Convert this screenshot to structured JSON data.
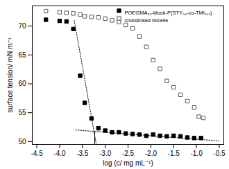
{
  "chart_data": {
    "type": "scatter",
    "x_label": "log (c/ mg mL⁻¹)",
    "y_label": "surface tension/ mN m⁻¹",
    "xlim": [
      -4.6,
      -0.4
    ],
    "ylim": [
      49.5,
      73.5
    ],
    "xticks": [
      -4.5,
      {
        "value": -4,
        "label": "-4.0"
      },
      -3.5,
      {
        "value": -3,
        "label": "-3.0"
      },
      -2.5,
      {
        "value": -2,
        "label": "-2.0"
      },
      -1.5,
      {
        "value": -1,
        "label": "-1.0"
      },
      -0.5
    ],
    "yticks": [
      50,
      55,
      60,
      65,
      70
    ],
    "legend": "top-right",
    "series": [
      {
        "name": "POEGMA₉₃-block-P(STY₅₆-co-TMI₁₆₇)",
        "color": "#000000",
        "marker": "square_filled",
        "x": [
          -4.3,
          -4.0,
          -3.85,
          -3.7,
          -3.55,
          -3.45,
          -3.3,
          -3.15,
          -3.0,
          -2.85,
          -2.7,
          -2.55,
          -2.4,
          -2.25,
          -2.1,
          -1.95,
          -1.8,
          -1.65,
          -1.5,
          -1.35,
          -1.2,
          -1.05,
          -0.9
        ],
        "values": [
          71.1,
          70.9,
          70.8,
          69.5,
          61.4,
          56.7,
          54.0,
          52.3,
          51.9,
          51.6,
          51.6,
          51.4,
          51.3,
          51.2,
          51.0,
          51.2,
          51.0,
          50.9,
          51.0,
          50.9,
          50.7,
          50.6,
          50.6
        ]
      },
      {
        "name": "crosslinked micelle",
        "color": "#555555",
        "marker": "square_open",
        "x": [
          -4.3,
          -4.0,
          -3.85,
          -3.7,
          -3.55,
          -3.45,
          -3.3,
          -3.15,
          -3.0,
          -2.85,
          -2.7,
          -2.55,
          -2.4,
          -2.25,
          -2.1,
          -1.95,
          -1.8,
          -1.65,
          -1.5,
          -1.35,
          -1.2,
          -1.05,
          -0.95,
          -0.85
        ],
        "values": [
          72.6,
          72.4,
          72.3,
          72.2,
          72.0,
          71.7,
          71.6,
          71.5,
          71.3,
          71.0,
          70.7,
          70.2,
          69.6,
          68.2,
          66.4,
          64.1,
          62.6,
          60.5,
          59.4,
          58.1,
          57.0,
          55.9,
          54.3,
          54.1
        ]
      }
    ],
    "fit_lines": [
      {
        "x": [
          -3.68,
          -3.2
        ],
        "y": [
          71.0,
          49.7
        ],
        "line_style": "dotted",
        "color": "#000000"
      },
      {
        "x": [
          -3.65,
          -0.5
        ],
        "y": [
          52.0,
          50.1
        ],
        "line_style": "dotted",
        "color": "#000000"
      },
      {
        "x": [
          -3.23,
          -3.23
        ],
        "y": [
          49.5,
          51.7
        ],
        "line_style": "solid",
        "color": "#000000"
      }
    ]
  }
}
